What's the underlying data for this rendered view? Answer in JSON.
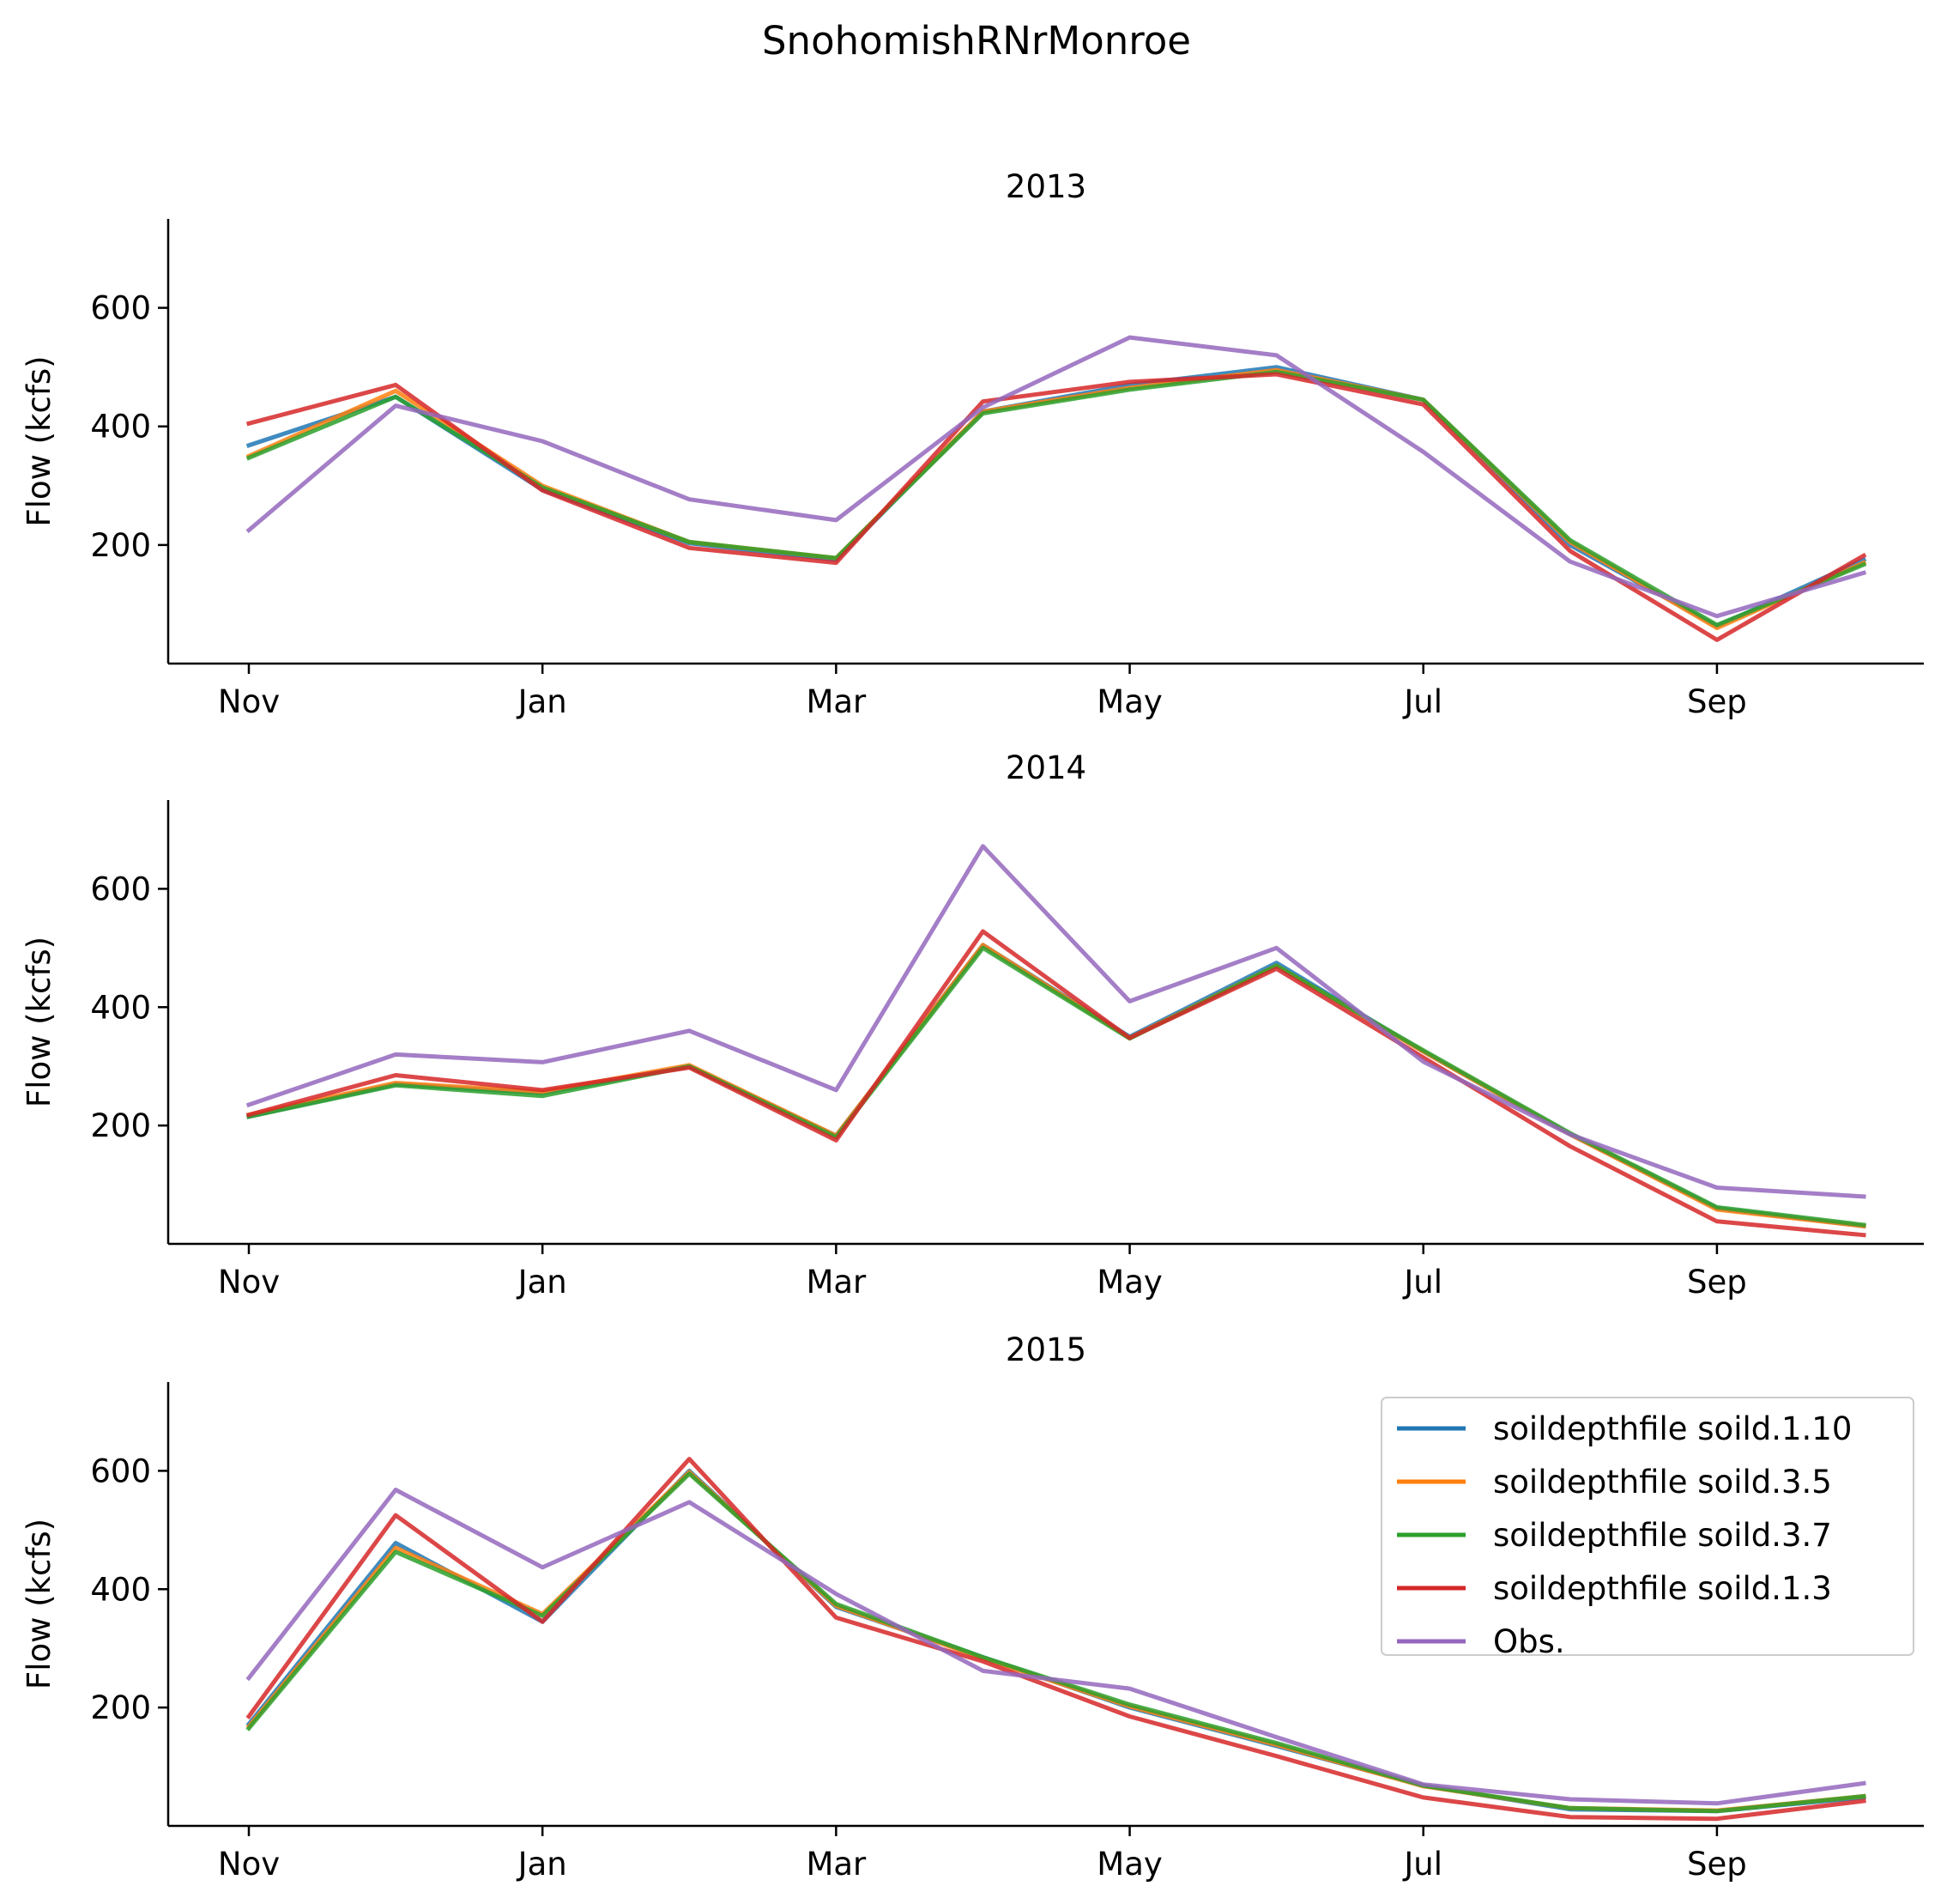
{
  "figure": {
    "title": "SnohomishRNrMonroe"
  },
  "colors": {
    "soild_1_10": "#1f77b4",
    "soild_3_5": "#ff7f0e",
    "soild_3_7": "#2ca02c",
    "soild_1_3": "#d62728",
    "obs": "#9467bd"
  },
  "chart_data": [
    {
      "type": "line",
      "title": "2013",
      "ylabel": "Flow (kcfs)",
      "ylim": [
        0,
        750
      ],
      "yticks": [
        200,
        400,
        600
      ],
      "x": [
        "2012-11",
        "2012-12",
        "2013-01",
        "2013-02",
        "2013-03",
        "2013-04",
        "2013-05",
        "2013-06",
        "2013-07",
        "2013-08",
        "2013-09",
        "2013-10"
      ],
      "xticks": [
        "Nov",
        "Jan",
        "Mar",
        "May",
        "Jul",
        "Sep"
      ],
      "series": [
        {
          "name": "soildepthfile soild.1.10",
          "color_key": "soild_1_10",
          "values": [
            368,
            450,
            293,
            203,
            175,
            425,
            470,
            500,
            445,
            200,
            63,
            175
          ]
        },
        {
          "name": "soildepthfile soild.3.5",
          "color_key": "soild_3_5",
          "values": [
            350,
            460,
            300,
            205,
            178,
            425,
            465,
            495,
            445,
            205,
            60,
            170
          ]
        },
        {
          "name": "soildepthfile soild.3.7",
          "color_key": "soild_3_7",
          "values": [
            347,
            450,
            297,
            205,
            178,
            422,
            462,
            492,
            445,
            208,
            65,
            167
          ]
        },
        {
          "name": "soildepthfile soild.1.3",
          "color_key": "soild_1_3",
          "values": [
            405,
            470,
            292,
            195,
            170,
            442,
            475,
            488,
            437,
            190,
            40,
            182
          ]
        },
        {
          "name": "Obs.",
          "color_key": "obs",
          "values": [
            225,
            435,
            375,
            277,
            242,
            432,
            550,
            520,
            357,
            172,
            80,
            153
          ]
        }
      ]
    },
    {
      "type": "line",
      "title": "2014",
      "ylabel": "Flow (kcfs)",
      "ylim": [
        0,
        750
      ],
      "yticks": [
        200,
        400,
        600
      ],
      "x": [
        "2013-11",
        "2013-12",
        "2014-01",
        "2014-02",
        "2014-03",
        "2014-04",
        "2014-05",
        "2014-06",
        "2014-07",
        "2014-08",
        "2014-09",
        "2014-10"
      ],
      "xticks": [
        "Nov",
        "Jan",
        "Mar",
        "May",
        "Jul",
        "Sep"
      ],
      "series": [
        {
          "name": "soildepthfile soild.1.10",
          "color_key": "soild_1_10",
          "values": [
            215,
            270,
            255,
            300,
            183,
            505,
            350,
            475,
            325,
            185,
            60,
            30
          ]
        },
        {
          "name": "soildepthfile soild.3.5",
          "color_key": "soild_3_5",
          "values": [
            218,
            272,
            257,
            302,
            183,
            505,
            348,
            470,
            325,
            185,
            58,
            30
          ]
        },
        {
          "name": "soildepthfile soild.3.7",
          "color_key": "soild_3_7",
          "values": [
            215,
            268,
            250,
            300,
            180,
            500,
            347,
            470,
            327,
            187,
            62,
            32
          ]
        },
        {
          "name": "soildepthfile soild.1.3",
          "color_key": "soild_1_3",
          "values": [
            218,
            285,
            260,
            298,
            175,
            528,
            348,
            465,
            315,
            165,
            38,
            15
          ]
        },
        {
          "name": "Obs.",
          "color_key": "obs",
          "values": [
            235,
            320,
            307,
            360,
            260,
            672,
            410,
            500,
            308,
            185,
            95,
            80
          ]
        }
      ]
    },
    {
      "type": "line",
      "title": "2015",
      "ylabel": "Flow (kcfs)",
      "ylim": [
        0,
        750
      ],
      "yticks": [
        200,
        400,
        600
      ],
      "x": [
        "2014-11",
        "2014-12",
        "2015-01",
        "2015-02",
        "2015-03",
        "2015-04",
        "2015-05",
        "2015-06",
        "2015-07",
        "2015-08",
        "2015-09",
        "2015-10"
      ],
      "xticks": [
        "Nov",
        "Jan",
        "Mar",
        "May",
        "Jul",
        "Sep"
      ],
      "legend": "upper right",
      "series": [
        {
          "name": "soildepthfile soild.1.10",
          "color_key": "soild_1_10",
          "values": [
            172,
            478,
            345,
            600,
            370,
            285,
            200,
            135,
            68,
            28,
            25,
            48
          ]
        },
        {
          "name": "soildepthfile soild.3.5",
          "color_key": "soild_3_5",
          "values": [
            168,
            470,
            358,
            598,
            372,
            283,
            202,
            137,
            67,
            30,
            26,
            50
          ]
        },
        {
          "name": "soildepthfile soild.3.7",
          "color_key": "soild_3_7",
          "values": [
            165,
            463,
            355,
            595,
            375,
            285,
            205,
            140,
            68,
            30,
            25,
            50
          ]
        },
        {
          "name": "soildepthfile soild.1.3",
          "color_key": "soild_1_3",
          "values": [
            185,
            525,
            345,
            620,
            352,
            278,
            185,
            118,
            48,
            15,
            12,
            42
          ]
        },
        {
          "name": "Obs.",
          "color_key": "obs",
          "values": [
            250,
            568,
            437,
            547,
            392,
            262,
            232,
            150,
            70,
            45,
            38,
            72
          ]
        }
      ]
    }
  ]
}
